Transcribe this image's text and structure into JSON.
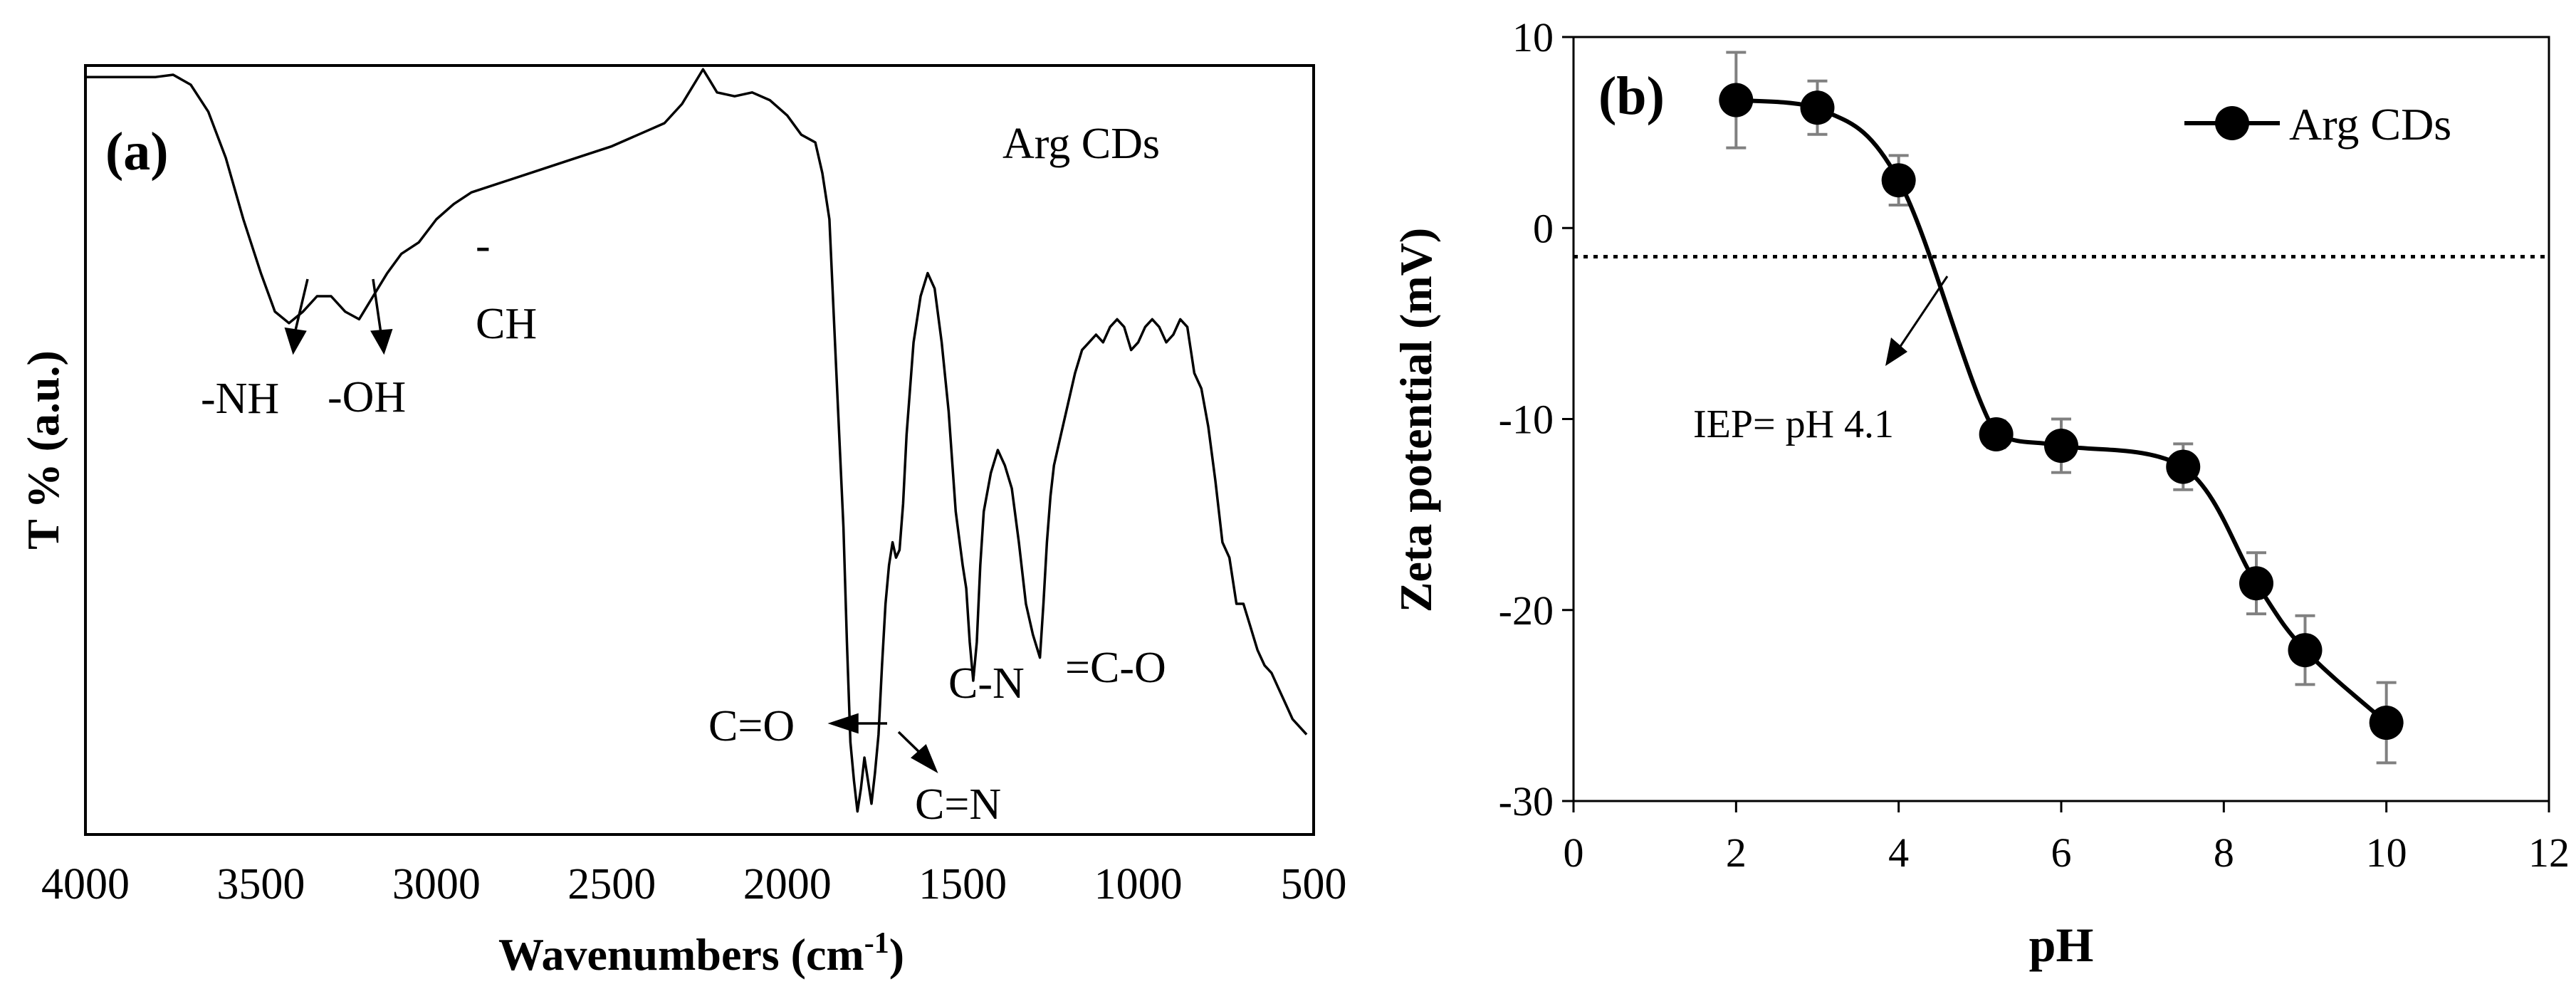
{
  "chart_data": [
    {
      "panel_label": "(a)",
      "type": "line",
      "title": "",
      "xlabel": "Wavenumbers (cm",
      "xlabel_superscript": "-1",
      "xlabel_close": ")",
      "ylabel": "T % (a.u.)",
      "xlim": [
        4000,
        500
      ],
      "ylim": [
        0,
        100
      ],
      "x_ticks": [
        "4000",
        "3500",
        "3000",
        "2500",
        "2000",
        "1500",
        "1000",
        "500"
      ],
      "x_tick_values": [
        4000,
        3500,
        3000,
        2500,
        2000,
        1500,
        1000,
        500
      ],
      "legend_text": "Arg CDs",
      "series": [
        {
          "name": "Arg CDs",
          "x": [
            4000,
            3800,
            3750,
            3700,
            3650,
            3600,
            3550,
            3500,
            3460,
            3420,
            3380,
            3340,
            3300,
            3260,
            3220,
            3180,
            3140,
            3100,
            3050,
            3000,
            2950,
            2900,
            2800,
            2700,
            2600,
            2500,
            2400,
            2350,
            2300,
            2260,
            2240,
            2220,
            2200,
            2150,
            2100,
            2050,
            2000,
            1960,
            1920,
            1900,
            1880,
            1860,
            1840,
            1830,
            1820,
            1810,
            1800,
            1790,
            1780,
            1770,
            1760,
            1750,
            1740,
            1730,
            1720,
            1710,
            1700,
            1690,
            1680,
            1670,
            1660,
            1650,
            1640,
            1620,
            1600,
            1580,
            1560,
            1540,
            1520,
            1500,
            1490,
            1480,
            1470,
            1460,
            1450,
            1440,
            1420,
            1400,
            1380,
            1360,
            1340,
            1320,
            1300,
            1280,
            1270,
            1260,
            1250,
            1240,
            1220,
            1200,
            1180,
            1160,
            1140,
            1120,
            1100,
            1080,
            1060,
            1040,
            1020,
            1000,
            980,
            960,
            940,
            920,
            900,
            880,
            860,
            840,
            820,
            800,
            780,
            760,
            740,
            720,
            700,
            680,
            660,
            640,
            620,
            600,
            580,
            560,
            540,
            520
          ],
          "y": [
            98.5,
            98.5,
            98.8,
            97.5,
            94,
            88,
            80,
            73,
            68,
            66.5,
            68,
            70,
            70,
            68,
            67,
            70,
            73,
            75.5,
            77,
            80,
            82,
            83.5,
            85,
            86.5,
            88,
            89.5,
            91.5,
            92.5,
            95,
            98,
            99.5,
            98,
            96.5,
            96,
            96.5,
            95.5,
            93.5,
            91,
            90,
            86,
            80,
            60,
            40,
            25,
            12,
            7,
            3,
            6,
            10,
            7,
            4,
            8,
            13,
            22,
            30,
            35,
            38,
            36,
            37,
            43,
            52,
            58,
            64,
            70,
            73,
            71,
            64,
            55,
            42,
            35,
            32,
            25,
            20,
            25,
            35,
            42,
            47,
            50,
            48,
            45,
            38,
            30,
            26,
            23,
            30,
            38,
            44,
            48,
            52,
            56,
            60,
            63,
            64,
            65,
            64,
            66,
            67,
            66,
            63,
            64,
            66,
            67,
            66,
            64,
            65,
            67,
            66,
            60,
            58,
            53,
            46,
            38,
            36,
            30,
            30,
            27,
            24,
            22,
            21,
            19,
            17,
            15,
            14,
            13
          ]
        }
      ],
      "annotations": [
        "-NH",
        "-OH",
        "-",
        "CH",
        "C=O",
        "C=N",
        "C-N",
        "=C-O"
      ]
    },
    {
      "panel_label": "(b)",
      "type": "line",
      "title": "",
      "xlabel": "pH",
      "ylabel": "Zeta potential (mV)",
      "xlim": [
        0,
        12
      ],
      "ylim": [
        -30,
        10
      ],
      "x_ticks": [
        "0",
        "2",
        "4",
        "6",
        "8",
        "10",
        "12"
      ],
      "x_tick_values": [
        0,
        2,
        4,
        6,
        8,
        10,
        12
      ],
      "y_ticks": [
        "-30",
        "-20",
        "-10",
        "0",
        "10"
      ],
      "y_tick_values": [
        -30,
        -20,
        -10,
        0,
        10
      ],
      "grid": false,
      "legend": {
        "position": "top-right",
        "entries": [
          "Arg CDs"
        ]
      },
      "series": [
        {
          "name": "Arg CDs",
          "x": [
            2,
            3,
            4,
            5.2,
            6,
            7.5,
            8.4,
            9,
            10
          ],
          "y": [
            6.7,
            6.3,
            2.5,
            -10.8,
            -11.4,
            -12.5,
            -18.6,
            -22.1,
            -25.9
          ],
          "error": [
            2.5,
            1.4,
            1.3,
            0.7,
            1.4,
            1.2,
            1.6,
            1.8,
            2.1
          ]
        }
      ],
      "reference_line": {
        "y": -1.5,
        "style": "dotted"
      },
      "annotation": "IEP= pH 4.1"
    }
  ],
  "colors": {
    "line": "#000000",
    "error_bar": "#808080",
    "background": "#ffffff"
  }
}
